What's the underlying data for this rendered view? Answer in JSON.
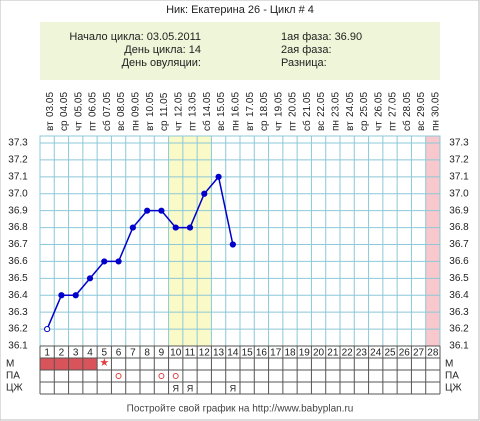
{
  "chart_data": {
    "type": "line",
    "title": "Ник: Екатерина 26 - Цикл # 4",
    "info_left": [
      "Начало цикла: 03.05.2011",
      "День цикла: 14",
      "День овуляции:"
    ],
    "info_right": [
      "1ая фаза: 36.90",
      "2ая фаза:",
      "Разница:"
    ],
    "categories": [
      1,
      2,
      3,
      4,
      5,
      6,
      7,
      8,
      9,
      10,
      11,
      12,
      13,
      14,
      15,
      16,
      17,
      18,
      19,
      20,
      21,
      22,
      23,
      24,
      25,
      26,
      27,
      28
    ],
    "dates": [
      "03.05",
      "04.05",
      "05.05",
      "06.05",
      "07.05",
      "08.05",
      "09.05",
      "10.05",
      "11.05",
      "12.05",
      "13.05",
      "14.05",
      "15.05",
      "16.05",
      "17.05",
      "18.05",
      "19.05",
      "20.05",
      "21.05",
      "22.05",
      "23.05",
      "24.05",
      "25.05",
      "26.05",
      "27.05",
      "28.05",
      "29.05",
      "30.05"
    ],
    "weekdays": [
      "вт",
      "ср",
      "чт",
      "пт",
      "сб",
      "вс",
      "пн",
      "вт",
      "ср",
      "чт",
      "пт",
      "сб",
      "вс",
      "пн",
      "вт",
      "ср",
      "чт",
      "пт",
      "сб",
      "вс",
      "пн",
      "вт",
      "ср",
      "чт",
      "пт",
      "сб",
      "вс",
      "пн"
    ],
    "series": [
      {
        "name": "Температура",
        "color": "#0000cc",
        "values": [
          36.2,
          36.4,
          36.4,
          36.5,
          36.6,
          36.6,
          36.8,
          36.9,
          36.9,
          36.8,
          36.8,
          37.0,
          37.1,
          36.7,
          null,
          null,
          null,
          null,
          null,
          null,
          null,
          null,
          null,
          null,
          null,
          null,
          null,
          null
        ]
      }
    ],
    "ylim": [
      36.1,
      37.3
    ],
    "yticks": [
      36.1,
      36.2,
      36.3,
      36.4,
      36.5,
      36.6,
      36.7,
      36.8,
      36.9,
      {
        "value": 37.0,
        "label": "37.0"
      },
      37.1,
      37.2,
      37.3
    ],
    "grid": true,
    "highlight_days": [
      10,
      11,
      12
    ],
    "end_day": 28,
    "moon_day": 10,
    "row_labels": [
      "М",
      "ПА",
      "ЦЖ"
    ],
    "menstruation_days": [
      1,
      2,
      3,
      4
    ],
    "star_day": 5,
    "pa_days": [
      6,
      9,
      10
    ],
    "cz_marks": [
      {
        "day": 10,
        "label": "Я"
      },
      {
        "day": 11,
        "label": "Я"
      },
      {
        "day": 14,
        "label": "Я"
      }
    ],
    "footer": "Постройте свой график на http://www.babyplan.ru"
  }
}
